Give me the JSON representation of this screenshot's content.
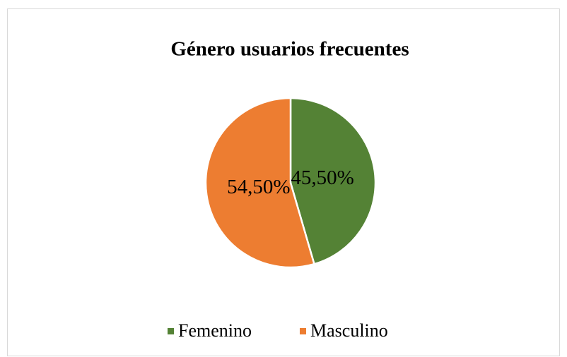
{
  "chart_data": {
    "type": "pie",
    "title": "Género usuarios frecuentes",
    "categories": [
      "Femenino",
      "Masculino"
    ],
    "values": [
      45.5,
      54.5
    ],
    "value_labels": [
      "45,50%",
      "54,50%"
    ],
    "colors": [
      "#548235",
      "#ed7d31"
    ],
    "legend": "bottom"
  }
}
